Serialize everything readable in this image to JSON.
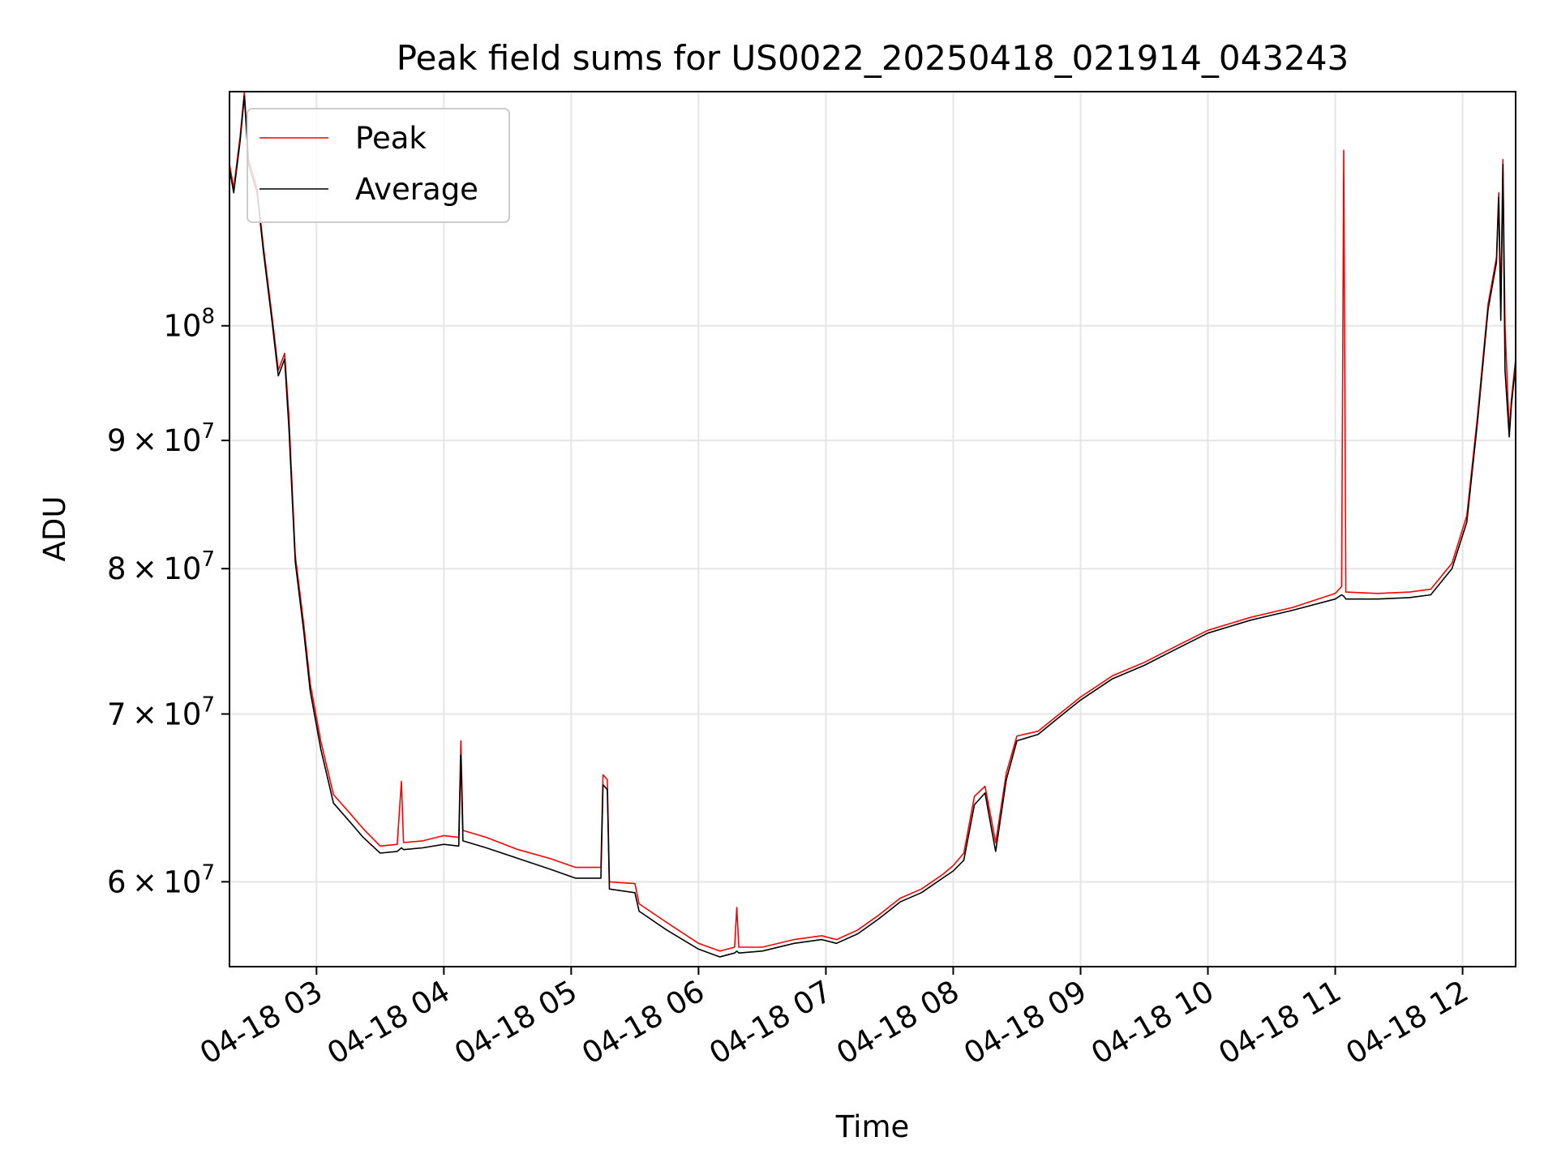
{
  "chart_data": {
    "type": "line",
    "title": "Peak field sums for US0022_20250418_021914_043243",
    "xlabel": "Time",
    "ylabel": "ADU",
    "y_scale": "log",
    "xlim": [
      "04-18 02:19",
      "04-18 12:25"
    ],
    "ylim": [
      55500000,
      124000000
    ],
    "x_ticks": [
      {
        "label": "04-18 03",
        "time": "04-18 03:00"
      },
      {
        "label": "04-18 04",
        "time": "04-18 04:00"
      },
      {
        "label": "04-18 05",
        "time": "04-18 05:00"
      },
      {
        "label": "04-18 06",
        "time": "04-18 06:00"
      },
      {
        "label": "04-18 07",
        "time": "04-18 07:00"
      },
      {
        "label": "04-18 08",
        "time": "04-18 08:00"
      },
      {
        "label": "04-18 09",
        "time": "04-18 09:00"
      },
      {
        "label": "04-18 10",
        "time": "04-18 10:00"
      },
      {
        "label": "04-18 11",
        "time": "04-18 11:00"
      },
      {
        "label": "04-18 12",
        "time": "04-18 12:00"
      }
    ],
    "y_ticks": [
      {
        "value": 60000000,
        "base": "6 × 10",
        "exp": "7"
      },
      {
        "value": 70000000,
        "base": "7 × 10",
        "exp": "7"
      },
      {
        "value": 80000000,
        "base": "8 × 10",
        "exp": "7"
      },
      {
        "value": 90000000,
        "base": "9 × 10",
        "exp": "7"
      },
      {
        "value": 100000000,
        "base": "10",
        "exp": "8"
      }
    ],
    "grid": true,
    "legend_position": "top-left",
    "series": [
      {
        "name": "Peak",
        "color": "#ff0000",
        "points": [
          [
            "04-18 02:19",
            116000000
          ],
          [
            "04-18 02:21",
            113500000
          ],
          [
            "04-18 02:24",
            119000000
          ],
          [
            "04-18 02:26",
            124000000
          ],
          [
            "04-18 02:28",
            116500000
          ],
          [
            "04-18 02:32",
            113500000
          ],
          [
            "04-18 02:35",
            107500000
          ],
          [
            "04-18 02:39",
            101000000
          ],
          [
            "04-18 02:42",
            96000000
          ],
          [
            "04-18 02:45",
            97500000
          ],
          [
            "04-18 02:47",
            92000000
          ],
          [
            "04-18 02:50",
            81000000
          ],
          [
            "04-18 02:54",
            76000000
          ],
          [
            "04-18 02:57",
            72000000
          ],
          [
            "04-18 03:02",
            68300000
          ],
          [
            "04-18 03:08",
            65000000
          ],
          [
            "04-18 03:15",
            64000000
          ],
          [
            "04-18 03:22",
            63000000
          ],
          [
            "04-18 03:30",
            62000000
          ],
          [
            "04-18 03:38",
            62100000
          ],
          [
            "04-18 03:40",
            65800000
          ],
          [
            "04-18 03:41",
            62200000
          ],
          [
            "04-18 03:50",
            62300000
          ],
          [
            "04-18 04:00",
            62600000
          ],
          [
            "04-18 04:07",
            62500000
          ],
          [
            "04-18 04:08",
            68300000
          ],
          [
            "04-18 04:09",
            62900000
          ],
          [
            "04-18 04:20",
            62500000
          ],
          [
            "04-18 04:35",
            61800000
          ],
          [
            "04-18 04:50",
            61300000
          ],
          [
            "04-18 05:02",
            60800000
          ],
          [
            "04-18 05:14",
            60800000
          ],
          [
            "04-18 05:15",
            66200000
          ],
          [
            "04-18 05:17",
            65900000
          ],
          [
            "04-18 05:18",
            60000000
          ],
          [
            "04-18 05:30",
            59900000
          ],
          [
            "04-18 05:32",
            58800000
          ],
          [
            "04-18 05:45",
            57800000
          ],
          [
            "04-18 06:00",
            56700000
          ],
          [
            "04-18 06:10",
            56300000
          ],
          [
            "04-18 06:17",
            56500000
          ],
          [
            "04-18 06:18",
            58600000
          ],
          [
            "04-18 06:19",
            56500000
          ],
          [
            "04-18 06:30",
            56500000
          ],
          [
            "04-18 06:45",
            56900000
          ],
          [
            "04-18 06:58",
            57100000
          ],
          [
            "04-18 07:05",
            56900000
          ],
          [
            "04-18 07:15",
            57400000
          ],
          [
            "04-18 07:25",
            58200000
          ],
          [
            "04-18 07:35",
            59100000
          ],
          [
            "04-18 07:45",
            59600000
          ],
          [
            "04-18 07:55",
            60400000
          ],
          [
            "04-18 08:00",
            60900000
          ],
          [
            "04-18 08:05",
            61600000
          ],
          [
            "04-18 08:10",
            64900000
          ],
          [
            "04-18 08:15",
            65500000
          ],
          [
            "04-18 08:18",
            63500000
          ],
          [
            "04-18 08:20",
            62200000
          ],
          [
            "04-18 08:25",
            66300000
          ],
          [
            "04-18 08:30",
            68600000
          ],
          [
            "04-18 08:40",
            68900000
          ],
          [
            "04-18 08:50",
            70000000
          ],
          [
            "04-18 09:00",
            71100000
          ],
          [
            "04-18 09:15",
            72500000
          ],
          [
            "04-18 09:30",
            73400000
          ],
          [
            "04-18 09:45",
            74500000
          ],
          [
            "04-18 10:00",
            75600000
          ],
          [
            "04-18 10:20",
            76500000
          ],
          [
            "04-18 10:40",
            77200000
          ],
          [
            "04-18 11:00",
            78200000
          ],
          [
            "04-18 11:03",
            78700000
          ],
          [
            "04-18 11:04",
            117500000
          ],
          [
            "04-18 11:05",
            78300000
          ],
          [
            "04-18 11:20",
            78200000
          ],
          [
            "04-18 11:35",
            78300000
          ],
          [
            "04-18 11:45",
            78500000
          ],
          [
            "04-18 11:55",
            80400000
          ],
          [
            "04-18 12:02",
            84000000
          ],
          [
            "04-18 12:07",
            92000000
          ],
          [
            "04-18 12:12",
            102000000
          ],
          [
            "04-18 12:16",
            106500000
          ],
          [
            "04-18 12:17",
            113000000
          ],
          [
            "04-18 12:18",
            102000000
          ],
          [
            "04-18 12:19",
            116500000
          ],
          [
            "04-18 12:20",
            100000000
          ],
          [
            "04-18 12:22",
            90800000
          ],
          [
            "04-18 12:23",
            93500000
          ],
          [
            "04-18 12:25",
            97000000
          ]
        ]
      },
      {
        "name": "Average",
        "color": "#000000",
        "points": [
          [
            "04-18 02:19",
            115500000
          ],
          [
            "04-18 02:21",
            113000000
          ],
          [
            "04-18 02:24",
            118500000
          ],
          [
            "04-18 02:26",
            123500000
          ],
          [
            "04-18 02:28",
            116000000
          ],
          [
            "04-18 02:32",
            113000000
          ],
          [
            "04-18 02:35",
            107000000
          ],
          [
            "04-18 02:39",
            100500000
          ],
          [
            "04-18 02:42",
            95500000
          ],
          [
            "04-18 02:45",
            97000000
          ],
          [
            "04-18 02:47",
            91000000
          ],
          [
            "04-18 02:50",
            80500000
          ],
          [
            "04-18 02:54",
            75500000
          ],
          [
            "04-18 02:57",
            71500000
          ],
          [
            "04-18 03:02",
            67800000
          ],
          [
            "04-18 03:08",
            64500000
          ],
          [
            "04-18 03:15",
            63500000
          ],
          [
            "04-18 03:22",
            62500000
          ],
          [
            "04-18 03:30",
            61600000
          ],
          [
            "04-18 03:38",
            61700000
          ],
          [
            "04-18 03:40",
            61900000
          ],
          [
            "04-18 03:41",
            61800000
          ],
          [
            "04-18 03:50",
            61900000
          ],
          [
            "04-18 04:00",
            62100000
          ],
          [
            "04-18 04:07",
            62000000
          ],
          [
            "04-18 04:08",
            67400000
          ],
          [
            "04-18 04:09",
            62300000
          ],
          [
            "04-18 04:20",
            61900000
          ],
          [
            "04-18 04:35",
            61300000
          ],
          [
            "04-18 04:50",
            60700000
          ],
          [
            "04-18 05:02",
            60200000
          ],
          [
            "04-18 05:14",
            60200000
          ],
          [
            "04-18 05:15",
            65600000
          ],
          [
            "04-18 05:17",
            65300000
          ],
          [
            "04-18 05:18",
            59600000
          ],
          [
            "04-18 05:30",
            59400000
          ],
          [
            "04-18 05:32",
            58400000
          ],
          [
            "04-18 05:45",
            57400000
          ],
          [
            "04-18 06:00",
            56400000
          ],
          [
            "04-18 06:10",
            56000000
          ],
          [
            "04-18 06:17",
            56200000
          ],
          [
            "04-18 06:18",
            56300000
          ],
          [
            "04-18 06:19",
            56200000
          ],
          [
            "04-18 06:30",
            56300000
          ],
          [
            "04-18 06:45",
            56700000
          ],
          [
            "04-18 06:58",
            56900000
          ],
          [
            "04-18 07:05",
            56700000
          ],
          [
            "04-18 07:15",
            57200000
          ],
          [
            "04-18 07:25",
            58000000
          ],
          [
            "04-18 07:35",
            58900000
          ],
          [
            "04-18 07:45",
            59400000
          ],
          [
            "04-18 07:55",
            60200000
          ],
          [
            "04-18 08:00",
            60600000
          ],
          [
            "04-18 08:05",
            61200000
          ],
          [
            "04-18 08:10",
            64400000
          ],
          [
            "04-18 08:15",
            65100000
          ],
          [
            "04-18 08:18",
            63000000
          ],
          [
            "04-18 08:20",
            61700000
          ],
          [
            "04-18 08:25",
            65900000
          ],
          [
            "04-18 08:30",
            68300000
          ],
          [
            "04-18 08:40",
            68700000
          ],
          [
            "04-18 08:50",
            69800000
          ],
          [
            "04-18 09:00",
            70900000
          ],
          [
            "04-18 09:15",
            72300000
          ],
          [
            "04-18 09:30",
            73200000
          ],
          [
            "04-18 09:45",
            74300000
          ],
          [
            "04-18 10:00",
            75400000
          ],
          [
            "04-18 10:20",
            76300000
          ],
          [
            "04-18 10:40",
            77000000
          ],
          [
            "04-18 11:00",
            77800000
          ],
          [
            "04-18 11:03",
            78100000
          ],
          [
            "04-18 11:04",
            78000000
          ],
          [
            "04-18 11:05",
            77800000
          ],
          [
            "04-18 11:20",
            77800000
          ],
          [
            "04-18 11:35",
            77900000
          ],
          [
            "04-18 11:45",
            78100000
          ],
          [
            "04-18 11:55",
            80000000
          ],
          [
            "04-18 12:02",
            83500000
          ],
          [
            "04-18 12:07",
            91500000
          ],
          [
            "04-18 12:12",
            101500000
          ],
          [
            "04-18 12:16",
            106000000
          ],
          [
            "04-18 12:17",
            112500000
          ],
          [
            "04-18 12:18",
            100500000
          ],
          [
            "04-18 12:19",
            116000000
          ],
          [
            "04-18 12:20",
            96000000
          ],
          [
            "04-18 12:22",
            90300000
          ],
          [
            "04-18 12:23",
            93000000
          ],
          [
            "04-18 12:25",
            96500000
          ]
        ]
      }
    ]
  }
}
